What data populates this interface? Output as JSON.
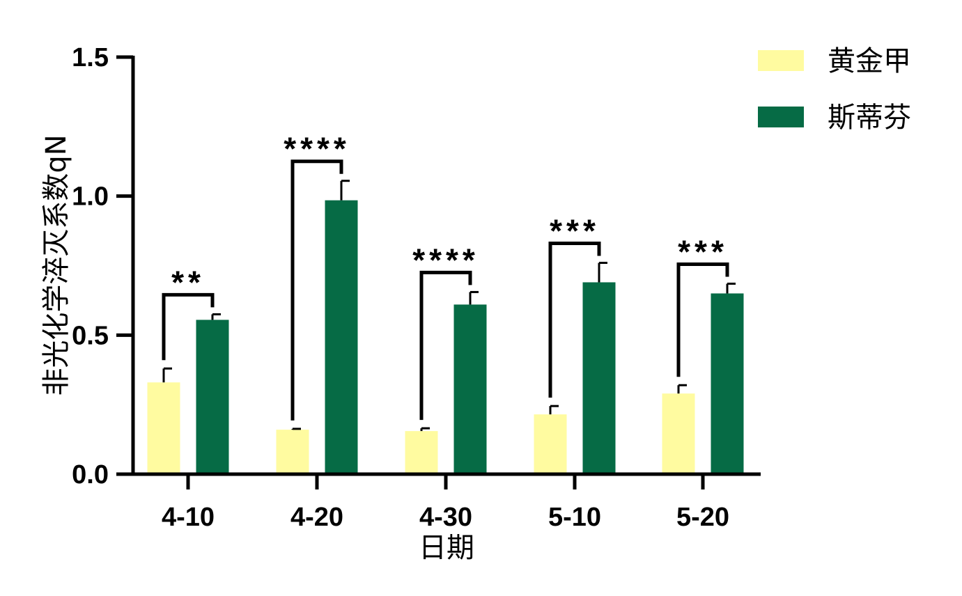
{
  "chart_data": {
    "type": "bar",
    "xlabel": "日期",
    "ylabel": "非光化学淬灭系数qN",
    "ylim": [
      0,
      1.5
    ],
    "yticks": [
      "0.0",
      "0.5",
      "1.0",
      "1.5"
    ],
    "ytick_values": [
      0,
      0.5,
      1.0,
      1.5
    ],
    "categories": [
      "4-10",
      "4-20",
      "4-30",
      "5-10",
      "5-20"
    ],
    "series": [
      {
        "name": "黄金甲",
        "color": "#FFFBA0",
        "values": [
          0.33,
          0.16,
          0.155,
          0.215,
          0.29
        ],
        "errors": [
          0.05,
          0.003,
          0.01,
          0.03,
          0.03
        ]
      },
      {
        "name": "斯蒂芬",
        "color": "#066B45",
        "values": [
          0.555,
          0.985,
          0.61,
          0.69,
          0.65
        ],
        "errors": [
          0.02,
          0.07,
          0.045,
          0.07,
          0.035
        ]
      }
    ],
    "significance": [
      "**",
      "****",
      "****",
      "***",
      "***"
    ],
    "legend_position": "top-right",
    "grid": false
  }
}
